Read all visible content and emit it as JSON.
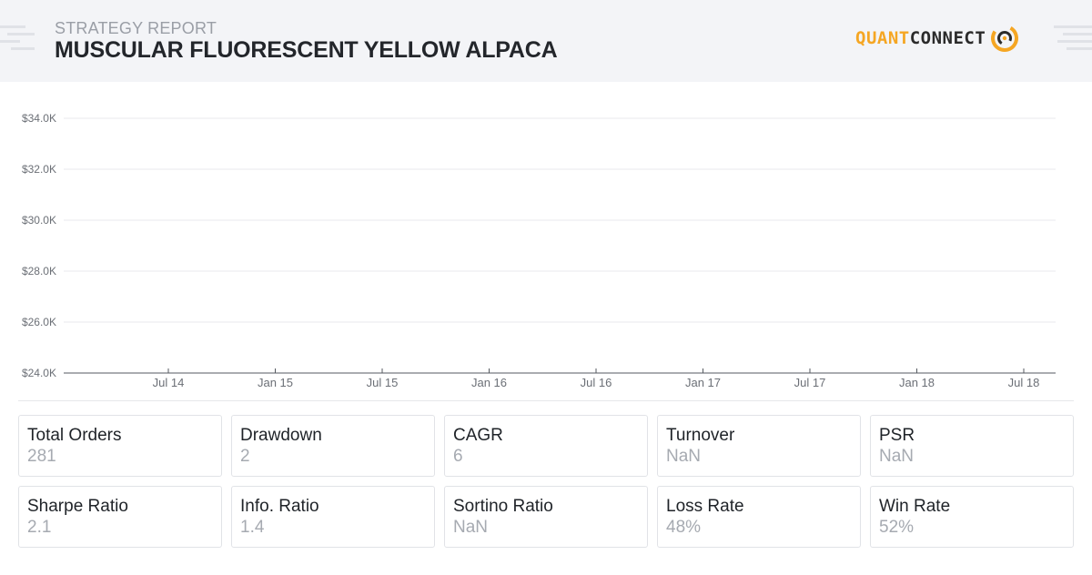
{
  "header": {
    "label": "STRATEGY REPORT",
    "title": "MUSCULAR FLUORESCENT YELLOW ALPACA"
  },
  "brand": {
    "part1": "QUANT",
    "part2": "CONNECT",
    "icon": "quantconnect-logo-icon",
    "accent_color": "#f5a623"
  },
  "chart_data": {
    "type": "line",
    "title": "",
    "xlabel": "",
    "ylabel": "",
    "y_tick_labels": [
      "$24.0K",
      "$26.0K",
      "$28.0K",
      "$30.0K",
      "$32.0K",
      "$34.0K"
    ],
    "y_ticks": [
      24000,
      26000,
      28000,
      30000,
      32000,
      34000
    ],
    "ylim": [
      24000,
      34000
    ],
    "x_tick_labels": [
      "Jul 14",
      "Jan 15",
      "Jul 15",
      "Jan 16",
      "Jul 16",
      "Jan 17",
      "Jul 17",
      "Jan 18",
      "Jul 18"
    ],
    "grid": true,
    "legend": "none",
    "series": []
  },
  "stats": [
    {
      "label": "Total Orders",
      "value": "281"
    },
    {
      "label": "Drawdown",
      "value": "2"
    },
    {
      "label": "CAGR",
      "value": "6"
    },
    {
      "label": "Turnover",
      "value": "NaN"
    },
    {
      "label": "PSR",
      "value": "NaN"
    },
    {
      "label": "Sharpe Ratio",
      "value": "2.1"
    },
    {
      "label": "Info. Ratio",
      "value": "1.4"
    },
    {
      "label": "Sortino Ratio",
      "value": "NaN"
    },
    {
      "label": "Loss Rate",
      "value": "48%"
    },
    {
      "label": "Win Rate",
      "value": "52%"
    }
  ]
}
